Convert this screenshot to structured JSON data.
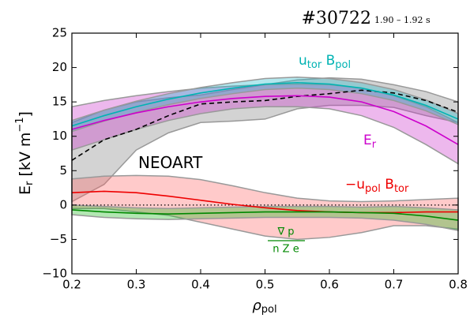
{
  "chart_data": {
    "type": "band-line",
    "title": "#30722",
    "subtitle": "1.90 – 1.92 s",
    "ylabel": [
      "E",
      "r",
      " [kV m",
      "−1",
      "]"
    ],
    "xlabel": [
      "ρ",
      "pol"
    ],
    "x": [
      0.2,
      0.25,
      0.3,
      0.35,
      0.4,
      0.45,
      0.5,
      0.55,
      0.6,
      0.65,
      0.7,
      0.75,
      0.8
    ],
    "xlim": [
      0.2,
      0.8
    ],
    "xticks": [
      0.2,
      0.3,
      0.4,
      0.5,
      0.6,
      0.7,
      0.8
    ],
    "ylim": [
      -10,
      25
    ],
    "yticks": [
      {
        "value": -10,
        "label": "−10"
      },
      {
        "value": -5,
        "label": "−5"
      },
      0,
      5,
      10,
      15,
      20,
      25
    ],
    "hline": 0,
    "series": [
      {
        "name": [
          "NEOART"
        ],
        "color": "#000000",
        "band_color": "#808080",
        "linestyle": "dashed",
        "values": [
          6.5,
          9.5,
          11.0,
          13.0,
          14.7,
          15.0,
          15.2,
          15.8,
          16.2,
          16.7,
          16.3,
          15.2,
          13.5
        ],
        "lower": [
          0.5,
          3.0,
          8.0,
          10.5,
          12.0,
          12.2,
          12.5,
          14.0,
          14.5,
          14.5,
          14.2,
          13.0,
          12.0
        ],
        "upper": [
          12.0,
          13.8,
          15.0,
          15.6,
          16.0,
          16.8,
          17.5,
          18.2,
          18.5,
          18.3,
          17.5,
          16.5,
          15.0
        ]
      },
      {
        "name": [
          "E",
          "r"
        ],
        "color": "#cc00cc",
        "band_color": "#cc33cc",
        "linestyle": "solid",
        "values": [
          11.0,
          12.3,
          13.4,
          14.3,
          15.0,
          15.5,
          15.8,
          15.9,
          15.7,
          15.0,
          13.6,
          11.5,
          8.8
        ],
        "lower": [
          8.0,
          9.5,
          11.0,
          12.3,
          13.3,
          14.0,
          14.3,
          14.3,
          14.0,
          13.0,
          11.3,
          8.8,
          6.0
        ],
        "upper": [
          14.3,
          15.2,
          15.9,
          16.5,
          17.0,
          17.3,
          17.5,
          17.6,
          17.5,
          17.0,
          15.9,
          14.3,
          12.0
        ]
      },
      {
        "name": [
          "u",
          "tor",
          " B",
          "pol"
        ],
        "color": "#00b3b3",
        "band_color": "#22bbcc",
        "linestyle": "solid",
        "values": [
          11.5,
          13.0,
          14.3,
          15.4,
          16.3,
          17.0,
          17.6,
          17.8,
          17.6,
          17.0,
          16.0,
          14.5,
          12.5
        ],
        "lower": [
          10.7,
          12.2,
          13.5,
          14.6,
          15.5,
          16.2,
          16.8,
          17.0,
          16.8,
          16.2,
          15.2,
          13.7,
          11.7
        ],
        "upper": [
          12.3,
          13.8,
          15.1,
          16.2,
          17.1,
          17.8,
          18.4,
          18.6,
          18.4,
          17.8,
          16.8,
          15.3,
          13.3
        ]
      },
      {
        "name": [
          "−u",
          "pol",
          " B",
          "tor"
        ],
        "color": "#ee0000",
        "band_color": "#ff6666",
        "linestyle": "solid",
        "values": [
          1.8,
          2.0,
          1.8,
          1.3,
          0.7,
          0.1,
          -0.4,
          -0.8,
          -1.0,
          -1.1,
          -1.1,
          -1.0,
          -1.0
        ],
        "lower": [
          -0.5,
          -0.5,
          -1.0,
          -1.5,
          -2.5,
          -3.5,
          -4.5,
          -5.0,
          -4.7,
          -4.0,
          -3.0,
          -3.0,
          -3.5
        ],
        "upper": [
          3.8,
          4.2,
          4.3,
          4.2,
          3.7,
          2.8,
          1.8,
          1.0,
          0.6,
          0.5,
          0.6,
          0.8,
          1.0
        ]
      },
      {
        "name": [
          "∇ p",
          "n Z e"
        ],
        "color": "#008800",
        "band_color": "#22bb22",
        "linestyle": "solid",
        "values": [
          -0.7,
          -1.0,
          -1.2,
          -1.3,
          -1.2,
          -1.1,
          -1.0,
          -1.0,
          -1.0,
          -1.1,
          -1.2,
          -1.6,
          -2.2
        ],
        "lower": [
          -1.4,
          -1.8,
          -2.0,
          -2.1,
          -2.0,
          -1.9,
          -1.8,
          -1.8,
          -1.8,
          -1.9,
          -2.2,
          -2.8,
          -3.7
        ],
        "upper": [
          0.0,
          -0.2,
          -0.4,
          -0.5,
          -0.4,
          -0.3,
          -0.2,
          -0.2,
          -0.2,
          -0.3,
          -0.2,
          -0.4,
          -0.7
        ]
      }
    ]
  }
}
